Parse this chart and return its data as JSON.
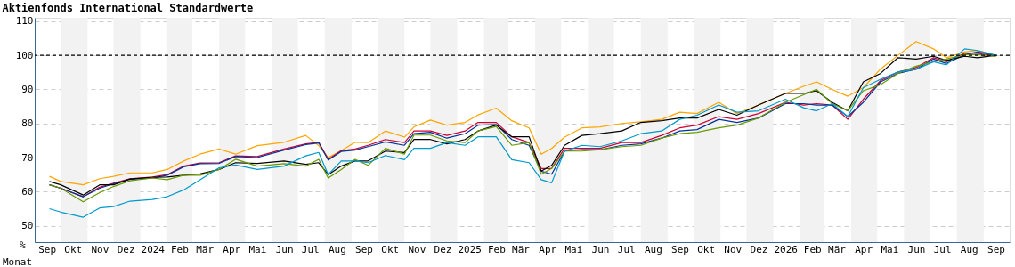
{
  "chart_data": {
    "type": "line",
    "title": "Aktienfonds International Standardwerte",
    "xlabel": "Monat",
    "ylabel": "%",
    "x": [
      "2023-09-18",
      "2023-10-01",
      "2023-10-27",
      "2023-11-15",
      "2023-12-01",
      "2023-12-20",
      "2024-01-15",
      "2024-02-01",
      "2024-02-20",
      "2024-03-10",
      "2024-04-01",
      "2024-04-20",
      "2024-05-15",
      "2024-06-15",
      "2024-07-10",
      "2024-07-25",
      "2024-08-05",
      "2024-08-20",
      "2024-09-05",
      "2024-09-20",
      "2024-10-10",
      "2024-11-01",
      "2024-11-12",
      "2024-12-01",
      "2024-12-20",
      "2025-01-10",
      "2025-01-25",
      "2025-02-15",
      "2025-03-05",
      "2025-03-25",
      "2025-04-08",
      "2025-04-20",
      "2025-05-05",
      "2025-05-25",
      "2025-06-15",
      "2025-07-10",
      "2025-08-01",
      "2025-08-25",
      "2025-09-15",
      "2025-10-05",
      "2025-10-30",
      "2025-11-20",
      "2025-12-15",
      "2026-01-15",
      "2026-02-05",
      "2026-02-20",
      "2026-03-10",
      "2026-03-28",
      "2026-04-15",
      "2026-05-05",
      "2026-05-25",
      "2026-06-15",
      "2026-07-05",
      "2026-07-20",
      "2026-08-10",
      "2026-08-25",
      "2026-09-15"
    ],
    "series": [
      {
        "color": "#ffa500",
        "values": [
          64.5,
          63,
          62,
          63.8,
          64.5,
          65.5,
          65.5,
          66.5,
          69,
          71,
          72.5,
          71,
          73.5,
          74.5,
          76.5,
          73.5,
          70,
          72,
          74.5,
          74.4,
          77.8,
          76,
          79,
          81,
          79.5,
          80.3,
          82.5,
          84.5,
          80.8,
          78.7,
          71,
          72.7,
          76,
          78.7,
          79,
          80,
          80.5,
          81.2,
          83.3,
          82.9,
          86.2,
          82.9,
          85.4,
          88.8,
          90.9,
          92.2,
          90,
          88,
          90.5,
          96,
          100,
          104,
          101.9,
          99.3,
          101,
          101.4,
          100
        ]
      },
      {
        "color": "#cc0033",
        "values": [
          62,
          61,
          58.5,
          61.3,
          62.5,
          63.8,
          64.3,
          65,
          67.5,
          68.4,
          68.5,
          70.5,
          70.3,
          72.5,
          74,
          74.5,
          69.5,
          72,
          72.5,
          73.6,
          75.3,
          74.4,
          77.8,
          77.8,
          76.5,
          77.8,
          80.3,
          80.3,
          76.1,
          74.4,
          66.8,
          66.8,
          72.7,
          72.7,
          72.7,
          74.4,
          74.4,
          76.5,
          78.7,
          79.5,
          82,
          81.2,
          82.9,
          86.2,
          85.4,
          85.8,
          85.4,
          81.2,
          87.1,
          92.6,
          95.1,
          96.4,
          99.3,
          98.1,
          100.6,
          100.6,
          99.7
        ]
      },
      {
        "color": "#003399",
        "values": [
          62,
          61,
          58.5,
          61,
          62.3,
          63.6,
          64,
          64.8,
          67.3,
          68.2,
          68.3,
          70.3,
          70,
          72.2,
          73.8,
          74.3,
          69.3,
          71.8,
          72.2,
          73.2,
          74.6,
          73.6,
          77,
          77.4,
          75.7,
          77,
          79.5,
          79.7,
          75.3,
          73.6,
          66,
          65.1,
          71.9,
          72.3,
          72.3,
          73.6,
          74,
          75.7,
          77.8,
          78.2,
          81.2,
          80.3,
          81.6,
          85.8,
          85.8,
          85.4,
          85.4,
          82,
          86.2,
          92.2,
          94.7,
          95.9,
          98.9,
          97.6,
          100.2,
          101,
          100
        ]
      },
      {
        "color": "#000000",
        "values": [
          63,
          62,
          59,
          62,
          62,
          63.7,
          64.2,
          64.3,
          64.8,
          65.2,
          66.5,
          68.5,
          68.3,
          69,
          68,
          68.5,
          65,
          67.5,
          69,
          69,
          71.9,
          71.5,
          75.3,
          75.3,
          74,
          75.3,
          77.8,
          79.5,
          76.1,
          76.1,
          66,
          67.7,
          73.6,
          76.5,
          77,
          77.8,
          80.3,
          80.8,
          81.6,
          81.6,
          84.1,
          82.4,
          85.4,
          88.8,
          88.8,
          89.6,
          86.2,
          83.7,
          92.2,
          94.7,
          99.3,
          98.9,
          99.7,
          98.5,
          99.7,
          99.3,
          100
        ]
      },
      {
        "color": "#669900",
        "values": [
          62,
          61,
          57,
          59.7,
          61.5,
          63.2,
          64,
          63.5,
          64.8,
          64.8,
          66.5,
          69.5,
          67.5,
          68.2,
          67.5,
          69.5,
          64,
          66.5,
          69.5,
          67.7,
          72.7,
          71,
          76.6,
          76.6,
          74.9,
          74.4,
          77.8,
          79.1,
          73.6,
          74.4,
          65.1,
          66.8,
          71.9,
          71.9,
          72.3,
          73.2,
          73.6,
          75.7,
          77,
          77.4,
          78.7,
          79.5,
          81.6,
          86.2,
          88.4,
          90,
          85.8,
          83.7,
          89.6,
          91.4,
          94.7,
          96.8,
          98.1,
          98.9,
          100.2,
          100.2,
          99.7
        ]
      },
      {
        "color": "#0099cc",
        "values": [
          55,
          54,
          52.5,
          55.2,
          55.6,
          57.2,
          57.7,
          58.5,
          60.5,
          63.5,
          67,
          67.8,
          66.5,
          67.5,
          70.5,
          71.5,
          65,
          69,
          69,
          68.5,
          70.6,
          69.4,
          72.7,
          72.7,
          74.4,
          73.6,
          76.1,
          76.1,
          69.4,
          68.5,
          63.5,
          62.6,
          71.9,
          73.6,
          73.2,
          74.9,
          77,
          77.8,
          81.2,
          82.4,
          85.4,
          83.3,
          83.7,
          87.1,
          84.6,
          83.7,
          85.8,
          82,
          90.5,
          93,
          95.1,
          95.9,
          98.1,
          97.2,
          101.9,
          101.4,
          100
        ]
      }
    ],
    "xlim": [
      "2023-09-01",
      "2026-10-01"
    ],
    "xticks": [
      {
        "value": "2023-09-15",
        "label": "Sep"
      },
      {
        "value": "2023-10-15",
        "label": "Okt"
      },
      {
        "value": "2023-11-15",
        "label": "Nov"
      },
      {
        "value": "2023-12-15",
        "label": "Dez"
      },
      {
        "value": "2024-01-15",
        "label": "2024"
      },
      {
        "value": "2024-02-15",
        "label": "Feb"
      },
      {
        "value": "2024-03-15",
        "label": "Mär"
      },
      {
        "value": "2024-04-15",
        "label": "Apr"
      },
      {
        "value": "2024-05-15",
        "label": "Mai"
      },
      {
        "value": "2024-06-15",
        "label": "Jun"
      },
      {
        "value": "2024-07-15",
        "label": "Jul"
      },
      {
        "value": "2024-08-15",
        "label": "Aug"
      },
      {
        "value": "2024-09-15",
        "label": "Sep"
      },
      {
        "value": "2024-10-15",
        "label": "Okt"
      },
      {
        "value": "2024-11-15",
        "label": "Nov"
      },
      {
        "value": "2024-12-15",
        "label": "Dez"
      },
      {
        "value": "2025-01-15",
        "label": "2025"
      },
      {
        "value": "2025-02-15",
        "label": "Feb"
      },
      {
        "value": "2025-03-15",
        "label": "Mär"
      },
      {
        "value": "2025-04-15",
        "label": "Apr"
      },
      {
        "value": "2025-05-15",
        "label": "Mai"
      },
      {
        "value": "2025-06-15",
        "label": "Jun"
      },
      {
        "value": "2025-07-15",
        "label": "Jul"
      },
      {
        "value": "2025-08-15",
        "label": "Aug"
      },
      {
        "value": "2025-09-15",
        "label": "Sep"
      },
      {
        "value": "2025-10-15",
        "label": "Okt"
      },
      {
        "value": "2025-11-15",
        "label": "Nov"
      },
      {
        "value": "2025-12-15",
        "label": "Dez"
      },
      {
        "value": "2026-01-15",
        "label": "2026"
      },
      {
        "value": "2026-02-15",
        "label": "Feb"
      },
      {
        "value": "2026-03-15",
        "label": "Mär"
      },
      {
        "value": "2026-04-15",
        "label": "Apr"
      },
      {
        "value": "2026-05-15",
        "label": "Mai"
      },
      {
        "value": "2026-06-15",
        "label": "Jun"
      },
      {
        "value": "2026-07-15",
        "label": "Jul"
      },
      {
        "value": "2026-08-15",
        "label": "Aug"
      },
      {
        "value": "2026-09-15",
        "label": "Sep"
      }
    ],
    "ylim": [
      45.2,
      111
    ],
    "yticks": [
      50,
      60,
      70,
      80,
      90,
      100,
      110
    ],
    "grid": "y",
    "line_style": "solid",
    "ref_lines": [
      {
        "axis": "y",
        "value": 100,
        "color": "#000000",
        "line_style": "dashed"
      }
    ],
    "bands": [
      {
        "axis": "x",
        "from": "2023-10-01",
        "to": "2023-11-01",
        "color": "#f2f2f2"
      },
      {
        "axis": "x",
        "from": "2023-12-01",
        "to": "2024-01-01",
        "color": "#f2f2f2"
      },
      {
        "axis": "x",
        "from": "2024-02-01",
        "to": "2024-03-01",
        "color": "#f2f2f2"
      },
      {
        "axis": "x",
        "from": "2024-04-01",
        "to": "2024-05-01",
        "color": "#f2f2f2"
      },
      {
        "axis": "x",
        "from": "2024-06-01",
        "to": "2024-07-01",
        "color": "#f2f2f2"
      },
      {
        "axis": "x",
        "from": "2024-08-01",
        "to": "2024-09-01",
        "color": "#f2f2f2"
      },
      {
        "axis": "x",
        "from": "2024-10-01",
        "to": "2024-11-01",
        "color": "#f2f2f2"
      },
      {
        "axis": "x",
        "from": "2024-12-01",
        "to": "2025-01-01",
        "color": "#f2f2f2"
      },
      {
        "axis": "x",
        "from": "2025-02-01",
        "to": "2025-03-01",
        "color": "#f2f2f2"
      },
      {
        "axis": "x",
        "from": "2025-04-01",
        "to": "2025-05-01",
        "color": "#f2f2f2"
      },
      {
        "axis": "x",
        "from": "2025-06-01",
        "to": "2025-07-01",
        "color": "#f2f2f2"
      },
      {
        "axis": "x",
        "from": "2025-08-01",
        "to": "2025-09-01",
        "color": "#f2f2f2"
      },
      {
        "axis": "x",
        "from": "2025-10-01",
        "to": "2025-11-01",
        "color": "#f2f2f2"
      },
      {
        "axis": "x",
        "from": "2025-12-01",
        "to": "2026-01-01",
        "color": "#f2f2f2"
      },
      {
        "axis": "x",
        "from": "2026-02-01",
        "to": "2026-03-01",
        "color": "#f2f2f2"
      },
      {
        "axis": "x",
        "from": "2026-04-01",
        "to": "2026-05-01",
        "color": "#f2f2f2"
      },
      {
        "axis": "x",
        "from": "2026-06-01",
        "to": "2026-07-01",
        "color": "#f2f2f2"
      },
      {
        "axis": "x",
        "from": "2026-08-01",
        "to": "2026-09-01",
        "color": "#f2f2f2"
      }
    ]
  }
}
